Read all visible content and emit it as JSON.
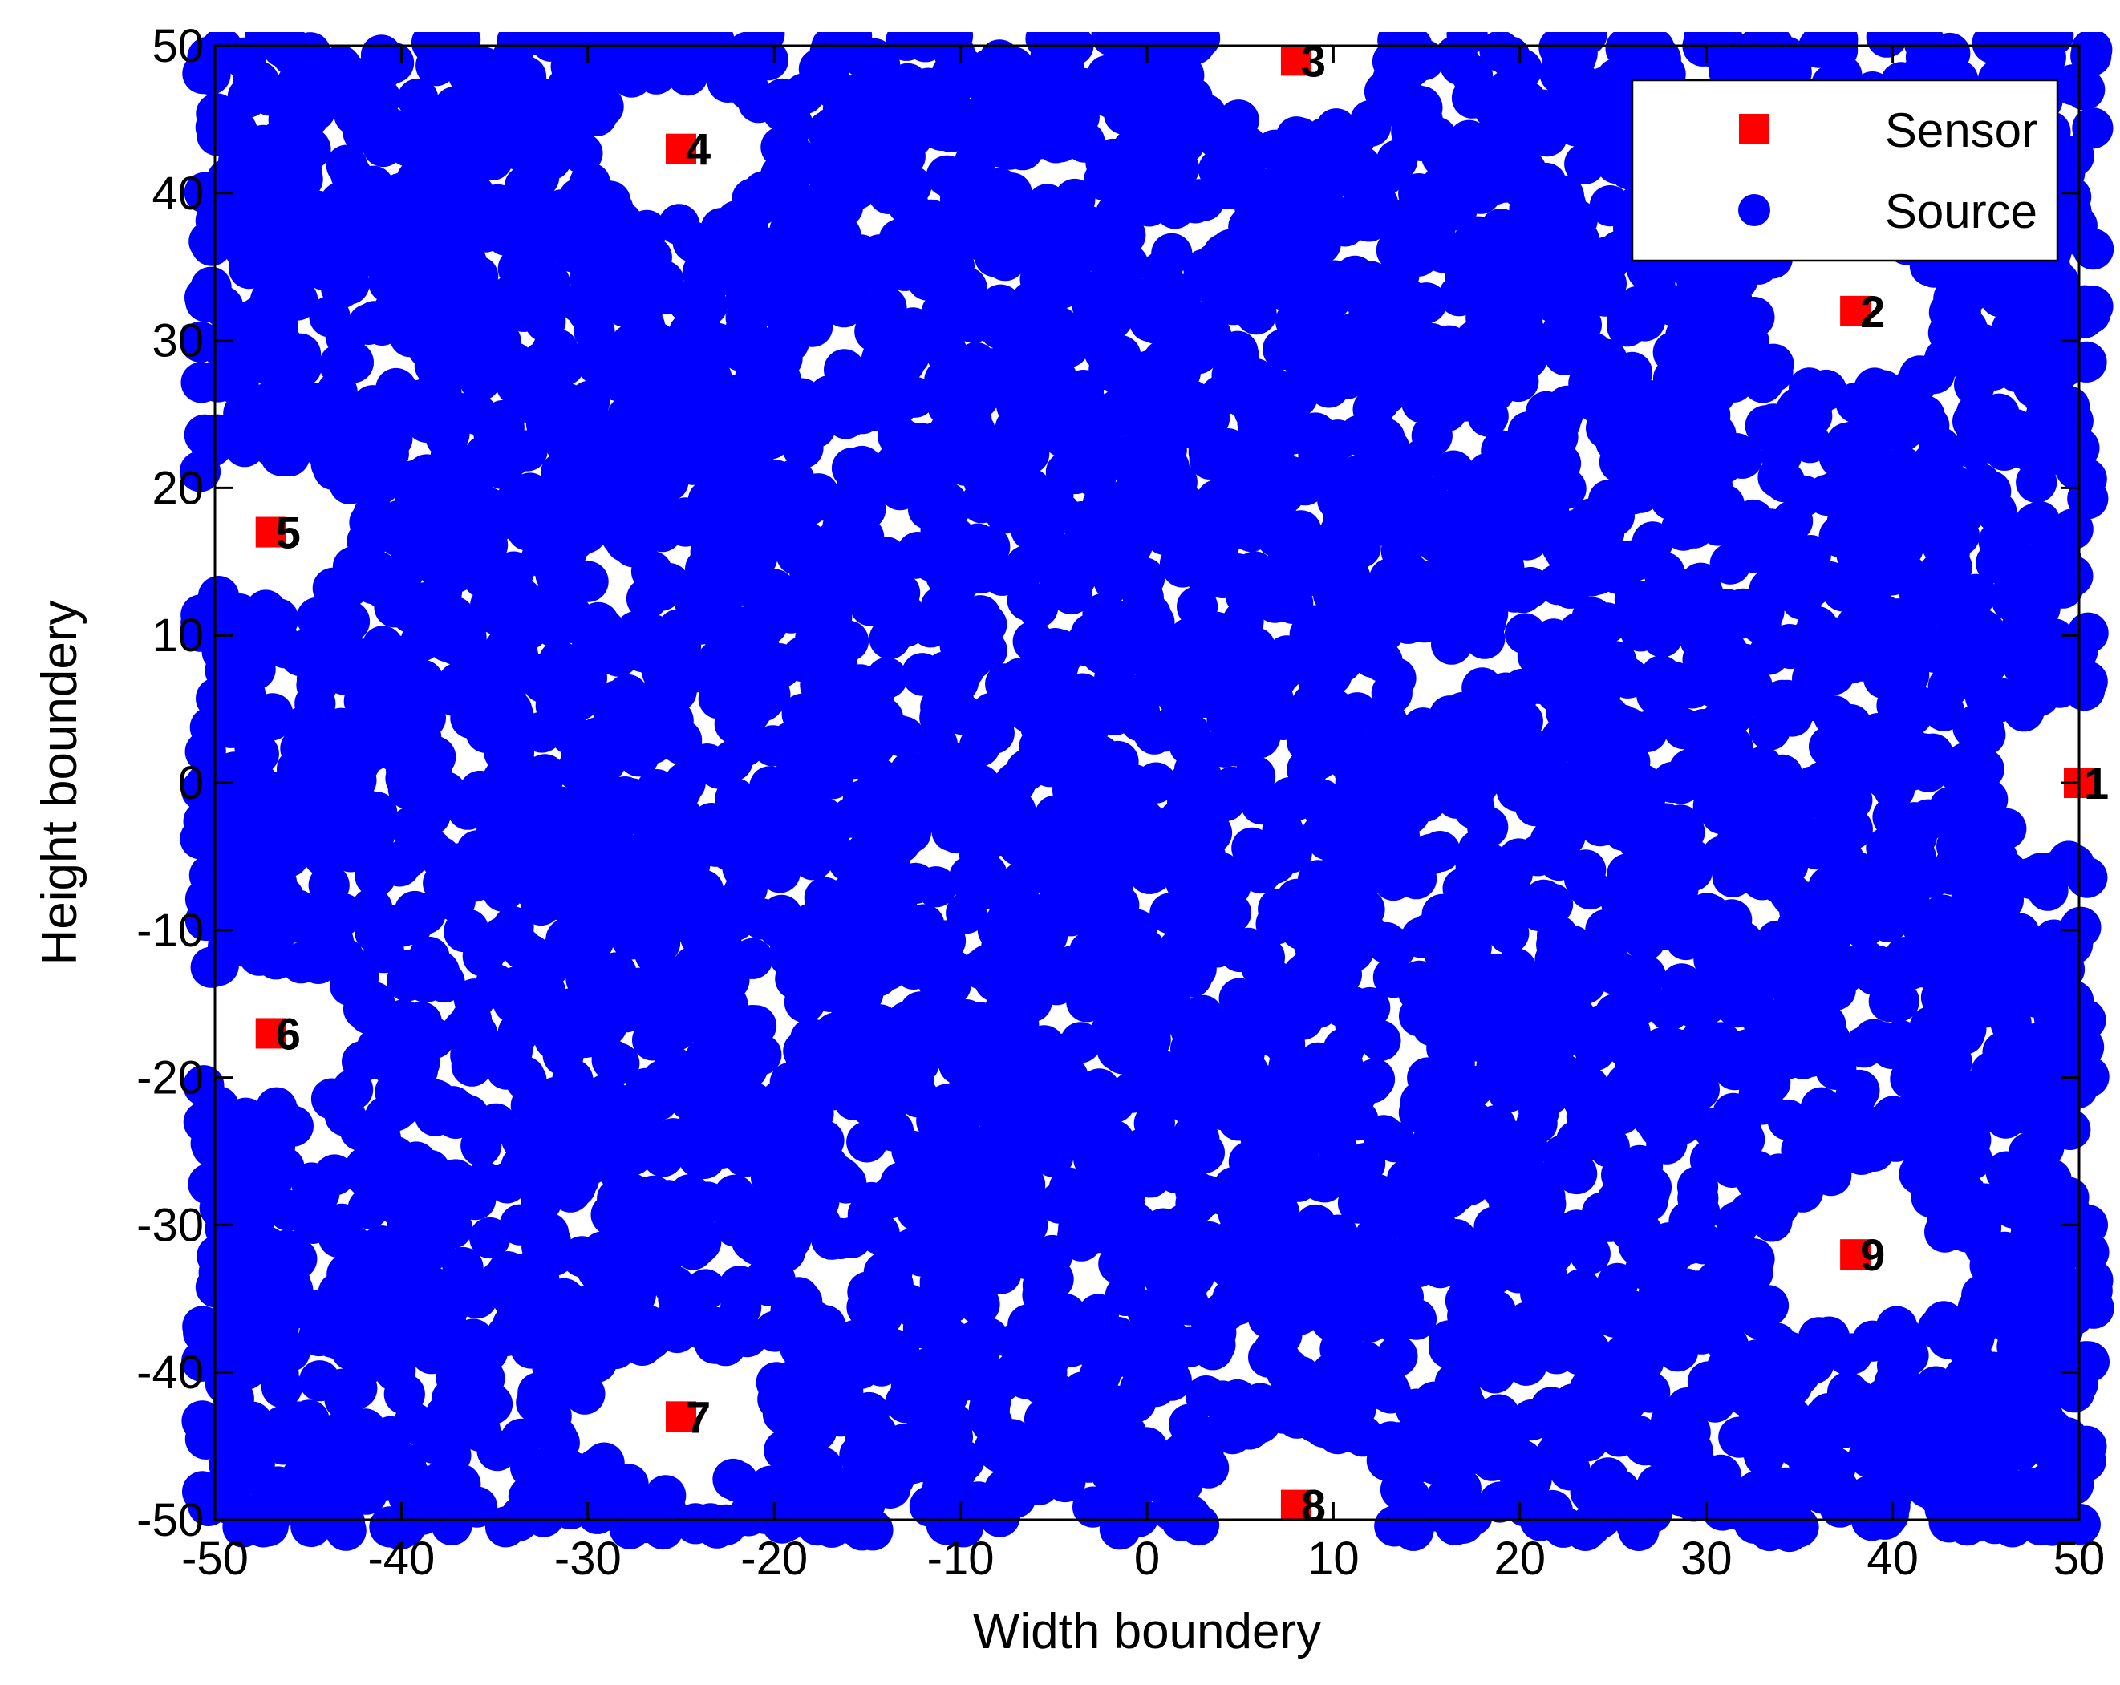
{
  "chart_data": {
    "type": "scatter",
    "title": "",
    "xlabel": "Width boundery",
    "ylabel": "Height boundery",
    "xlim": [
      -50,
      50
    ],
    "ylim": [
      -50,
      50
    ],
    "xticks": [
      -50,
      -40,
      -30,
      -20,
      -10,
      0,
      10,
      20,
      30,
      40,
      50
    ],
    "yticks": [
      -50,
      -40,
      -30,
      -20,
      -10,
      0,
      10,
      20,
      30,
      40,
      50
    ],
    "grid": false,
    "legend": {
      "position": "top-right",
      "entries": [
        {
          "name": "Sensor",
          "marker": "square",
          "color": "#ff0000"
        },
        {
          "name": "Source",
          "marker": "circle",
          "color": "#0000ff"
        }
      ]
    },
    "series": [
      {
        "name": "Sensor",
        "marker": "square",
        "color": "#ff0000",
        "points": [
          {
            "label": "1",
            "x": 50,
            "y": 0
          },
          {
            "label": "2",
            "x": 38,
            "y": 32
          },
          {
            "label": "3",
            "x": 8,
            "y": 49
          },
          {
            "label": "4",
            "x": -25,
            "y": 43
          },
          {
            "label": "5",
            "x": -47,
            "y": 17
          },
          {
            "label": "6",
            "x": -47,
            "y": -17
          },
          {
            "label": "7",
            "x": -25,
            "y": -43
          },
          {
            "label": "8",
            "x": 8,
            "y": -49
          },
          {
            "label": "9",
            "x": 38,
            "y": -32
          }
        ]
      },
      {
        "name": "Source",
        "marker": "circle",
        "color": "#0000ff",
        "description_count": "dense uniform random points over [-50,50]x[-50,50], absent near sensors",
        "exclusion_radius": 5,
        "point_radius": 1.1
      }
    ]
  }
}
